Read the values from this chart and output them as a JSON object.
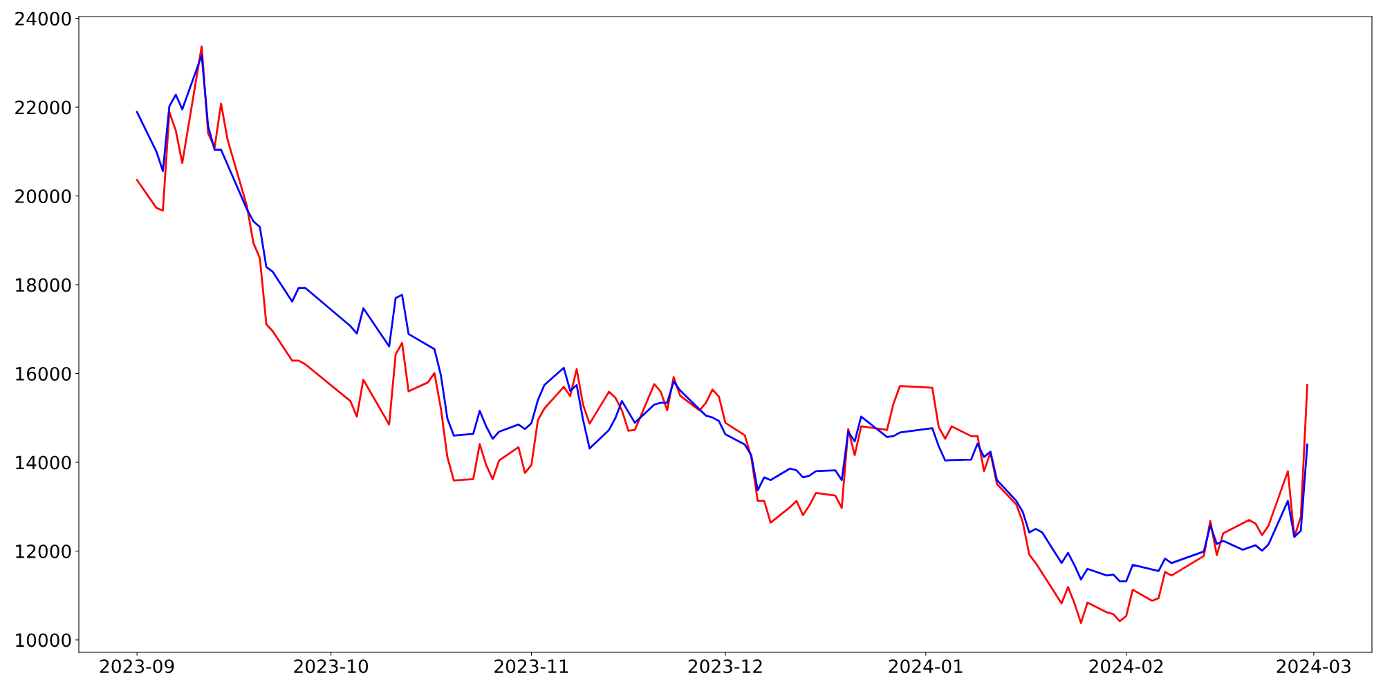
{
  "chart_data": {
    "type": "line",
    "xlim": [
      "2023-08-23",
      "2024-03-10"
    ],
    "ylim": [
      9720,
      24040
    ],
    "xticks": [
      {
        "value": "2023-09-01",
        "label": "2023-09"
      },
      {
        "value": "2023-10-01",
        "label": "2023-10"
      },
      {
        "value": "2023-11-01",
        "label": "2023-11"
      },
      {
        "value": "2023-12-01",
        "label": "2023-12"
      },
      {
        "value": "2024-01-01",
        "label": "2024-01"
      },
      {
        "value": "2024-02-01",
        "label": "2024-02"
      },
      {
        "value": "2024-03-01",
        "label": "2024-03"
      }
    ],
    "yticks": [
      10000,
      12000,
      14000,
      16000,
      18000,
      20000,
      22000,
      24000
    ],
    "marker": "none",
    "line_style": "solid",
    "series": [
      {
        "color": "#ff0000",
        "x": [
          "2023-09-01",
          "2023-09-04",
          "2023-09-05",
          "2023-09-06",
          "2023-09-07",
          "2023-09-08",
          "2023-09-11",
          "2023-09-12",
          "2023-09-13",
          "2023-09-14",
          "2023-09-15",
          "2023-09-18",
          "2023-09-19",
          "2023-09-20",
          "2023-09-21",
          "2023-09-22",
          "2023-09-25",
          "2023-09-26",
          "2023-09-27",
          "2023-10-04",
          "2023-10-05",
          "2023-10-06",
          "2023-10-10",
          "2023-10-11",
          "2023-10-12",
          "2023-10-13",
          "2023-10-16",
          "2023-10-17",
          "2023-10-18",
          "2023-10-19",
          "2023-10-20",
          "2023-10-23",
          "2023-10-24",
          "2023-10-25",
          "2023-10-26",
          "2023-10-27",
          "2023-10-30",
          "2023-10-31",
          "2023-11-01",
          "2023-11-02",
          "2023-11-03",
          "2023-11-06",
          "2023-11-07",
          "2023-11-08",
          "2023-11-09",
          "2023-11-10",
          "2023-11-13",
          "2023-11-14",
          "2023-11-15",
          "2023-11-16",
          "2023-11-17",
          "2023-11-20",
          "2023-11-21",
          "2023-11-22",
          "2023-11-23",
          "2023-11-24",
          "2023-11-27",
          "2023-11-28",
          "2023-11-29",
          "2023-11-30",
          "2023-12-01",
          "2023-12-04",
          "2023-12-05",
          "2023-12-06",
          "2023-12-07",
          "2023-12-08",
          "2023-12-11",
          "2023-12-12",
          "2023-12-13",
          "2023-12-14",
          "2023-12-15",
          "2023-12-18",
          "2023-12-19",
          "2023-12-20",
          "2023-12-21",
          "2023-12-22",
          "2023-12-26",
          "2023-12-27",
          "2023-12-28",
          "2024-01-02",
          "2024-01-03",
          "2024-01-04",
          "2024-01-05",
          "2024-01-08",
          "2024-01-09",
          "2024-01-10",
          "2024-01-11",
          "2024-01-12",
          "2024-01-15",
          "2024-01-16",
          "2024-01-17",
          "2024-01-18",
          "2024-01-22",
          "2024-01-23",
          "2024-01-24",
          "2024-01-25",
          "2024-01-26",
          "2024-01-29",
          "2024-01-30",
          "2024-01-31",
          "2024-02-01",
          "2024-02-02",
          "2024-02-05",
          "2024-02-06",
          "2024-02-07",
          "2024-02-08",
          "2024-02-13",
          "2024-02-14",
          "2024-02-15",
          "2024-02-16",
          "2024-02-20",
          "2024-02-21",
          "2024-02-22",
          "2024-02-23",
          "2024-02-26",
          "2024-02-27",
          "2024-02-28",
          "2024-02-29"
        ],
        "values": [
          20360,
          19730,
          19670,
          21890,
          21470,
          20740,
          23370,
          21410,
          21090,
          22080,
          21270,
          19770,
          18940,
          18600,
          17110,
          16950,
          16290,
          16290,
          16210,
          15380,
          15030,
          15860,
          14850,
          16430,
          16690,
          15600,
          15800,
          16010,
          15210,
          14120,
          13590,
          13620,
          14410,
          13940,
          13620,
          14040,
          14340,
          13760,
          13940,
          14950,
          15210,
          15700,
          15490,
          16100,
          15290,
          14870,
          15590,
          15450,
          15170,
          14710,
          14730,
          15760,
          15590,
          15170,
          15920,
          15500,
          15170,
          15340,
          15640,
          15480,
          14890,
          14610,
          14120,
          13130,
          13130,
          12640,
          12990,
          13130,
          12810,
          13030,
          13310,
          13250,
          12970,
          14750,
          14160,
          14810,
          14730,
          15320,
          15720,
          15680,
          14790,
          14530,
          14810,
          14590,
          14590,
          13800,
          14220,
          13510,
          13050,
          12650,
          11920,
          11730,
          10820,
          11190,
          10820,
          10380,
          10840,
          10620,
          10580,
          10420,
          10540,
          11130,
          10880,
          10940,
          11530,
          11450,
          11890,
          12680,
          11910,
          12400,
          12700,
          12620,
          12360,
          12570,
          13800,
          12320,
          12770,
          15740
        ]
      },
      {
        "color": "#0000ff",
        "x": [
          "2023-09-01",
          "2023-09-04",
          "2023-09-05",
          "2023-09-06",
          "2023-09-07",
          "2023-09-08",
          "2023-09-11",
          "2023-09-12",
          "2023-09-13",
          "2023-09-14",
          "2023-09-18",
          "2023-09-19",
          "2023-09-20",
          "2023-09-21",
          "2023-09-22",
          "2023-09-25",
          "2023-09-26",
          "2023-09-27",
          "2023-10-04",
          "2023-10-05",
          "2023-10-06",
          "2023-10-10",
          "2023-10-11",
          "2023-10-12",
          "2023-10-13",
          "2023-10-17",
          "2023-10-18",
          "2023-10-19",
          "2023-10-20",
          "2023-10-23",
          "2023-10-24",
          "2023-10-25",
          "2023-10-26",
          "2023-10-27",
          "2023-10-30",
          "2023-10-31",
          "2023-11-01",
          "2023-11-02",
          "2023-11-03",
          "2023-11-06",
          "2023-11-07",
          "2023-11-08",
          "2023-11-09",
          "2023-11-10",
          "2023-11-13",
          "2023-11-14",
          "2023-11-15",
          "2023-11-17",
          "2023-11-20",
          "2023-11-21",
          "2023-11-22",
          "2023-11-23",
          "2023-11-24",
          "2023-11-28",
          "2023-11-29",
          "2023-11-30",
          "2023-12-01",
          "2023-12-04",
          "2023-12-05",
          "2023-12-06",
          "2023-12-07",
          "2023-12-08",
          "2023-12-11",
          "2023-12-12",
          "2023-12-13",
          "2023-12-14",
          "2023-12-15",
          "2023-12-18",
          "2023-12-19",
          "2023-12-20",
          "2023-12-21",
          "2023-12-22",
          "2023-12-26",
          "2023-12-27",
          "2023-12-28",
          "2024-01-02",
          "2024-01-03",
          "2024-01-04",
          "2024-01-05",
          "2024-01-08",
          "2024-01-09",
          "2024-01-10",
          "2024-01-11",
          "2024-01-12",
          "2024-01-15",
          "2024-01-16",
          "2024-01-17",
          "2024-01-18",
          "2024-01-19",
          "2024-01-22",
          "2024-01-23",
          "2024-01-24",
          "2024-01-25",
          "2024-01-26",
          "2024-01-29",
          "2024-01-30",
          "2024-01-31",
          "2024-02-01",
          "2024-02-02",
          "2024-02-06",
          "2024-02-07",
          "2024-02-08",
          "2024-02-13",
          "2024-02-14",
          "2024-02-15",
          "2024-02-16",
          "2024-02-19",
          "2024-02-21",
          "2024-02-22",
          "2024-02-23",
          "2024-02-26",
          "2024-02-27",
          "2024-02-28",
          "2024-02-29"
        ],
        "values": [
          21890,
          21000,
          20560,
          22020,
          22280,
          21950,
          23170,
          21570,
          21040,
          21040,
          19700,
          19430,
          19300,
          18400,
          18290,
          17620,
          17930,
          17930,
          17070,
          16900,
          17470,
          16610,
          17700,
          17770,
          16890,
          16550,
          15960,
          14990,
          14600,
          14640,
          15160,
          14810,
          14530,
          14690,
          14850,
          14750,
          14880,
          15400,
          15740,
          16130,
          15610,
          15740,
          14950,
          14310,
          14730,
          15000,
          15380,
          14890,
          15300,
          15340,
          15340,
          15820,
          15620,
          15050,
          15010,
          14930,
          14630,
          14400,
          14160,
          13370,
          13660,
          13600,
          13860,
          13820,
          13660,
          13700,
          13800,
          13820,
          13600,
          14690,
          14470,
          15030,
          14570,
          14590,
          14670,
          14770,
          14360,
          14040,
          14050,
          14060,
          14420,
          14120,
          14240,
          13600,
          13130,
          12880,
          12420,
          12500,
          12420,
          11730,
          11960,
          11680,
          11360,
          11600,
          11450,
          11470,
          11320,
          11320,
          11690,
          11550,
          11830,
          11730,
          11990,
          12580,
          12160,
          12230,
          12030,
          12130,
          12010,
          12150,
          13130,
          12320,
          12460,
          14400
        ]
      }
    ]
  }
}
